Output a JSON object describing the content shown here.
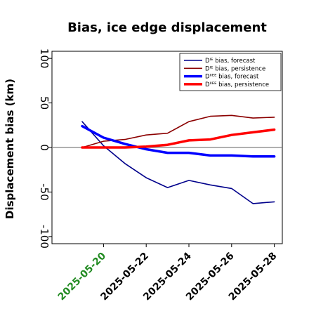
{
  "chart_data": {
    "type": "line",
    "title": "Bias, ice edge displacement",
    "ylabel": "Displacement bias (km)",
    "xlabel": "",
    "ylim": [
      -108,
      108
    ],
    "yticks": [
      -100,
      -50,
      0,
      50,
      100
    ],
    "x": [
      "2025-05-19",
      "2025-05-20",
      "2025-05-21",
      "2025-05-22",
      "2025-05-23",
      "2025-05-24",
      "2025-05-25",
      "2025-05-26",
      "2025-05-27",
      "2025-05-28"
    ],
    "xticks": [
      {
        "label": "2025-05-20",
        "color": "#228B22"
      },
      {
        "label": "2025-05-22",
        "color": "#000000"
      },
      {
        "label": "2025-05-24",
        "color": "#000000"
      },
      {
        "label": "2025-05-26",
        "color": "#000000"
      },
      {
        "label": "2025-05-28",
        "color": "#000000"
      }
    ],
    "zero_line": true,
    "grid": false,
    "legend_position": "top-right",
    "series": [
      {
        "name": "Dᴵᴱ bias, forecast",
        "color": "#00008B",
        "width": 1.6,
        "values": [
          29,
          2,
          -18,
          -34,
          -45,
          -37,
          -42,
          -46,
          -63,
          -61
        ]
      },
      {
        "name": "Dᴵᴱ bias, persistence",
        "color": "#8B0000",
        "width": 1.6,
        "values": [
          0,
          7,
          9,
          14,
          16,
          29,
          35,
          36,
          33,
          34
        ]
      },
      {
        "name": "Dᴵᴵᴱᴱ bias, forecast",
        "color": "#0000FF",
        "width": 3.5,
        "values": [
          24,
          11,
          4,
          -2,
          -6,
          -6,
          -9,
          -9,
          -10,
          -10
        ]
      },
      {
        "name": "Dᴵᴵᴱᴱ bias, persistence",
        "color": "#FF0000",
        "width": 3.5,
        "values": [
          0,
          0,
          0,
          1,
          3,
          8,
          9,
          14,
          17,
          20
        ]
      }
    ]
  }
}
